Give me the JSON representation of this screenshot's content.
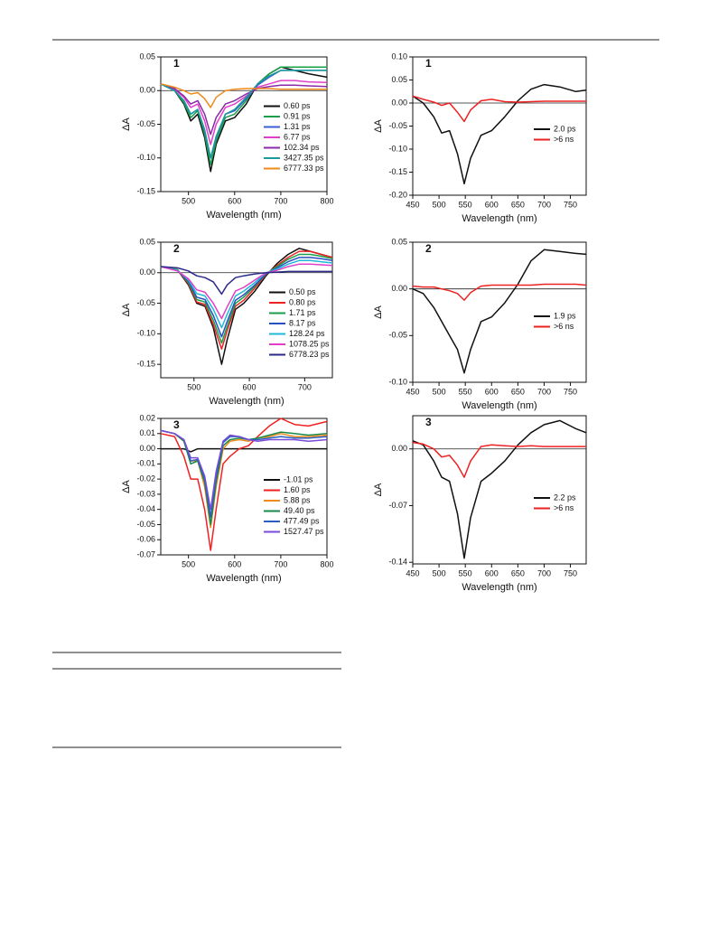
{
  "chart_data": [
    {
      "type": "line",
      "title": "1",
      "x_label": "Wavelength (nm)",
      "y_label": "ΔA",
      "legend": "lower right",
      "zero_line": true,
      "xlim": [
        440,
        800
      ],
      "xticks": [
        500,
        600,
        700,
        800
      ],
      "ylim": [
        -0.15,
        0.05
      ],
      "yticks": [
        -0.15,
        {
          "value": -0.1,
          "label": "-0.10"
        },
        -0.05,
        {
          "value": 0,
          "label": "0.00"
        },
        0.05
      ],
      "x": [
        440,
        470,
        490,
        505,
        520,
        535,
        548,
        560,
        580,
        600,
        625,
        650,
        675,
        700,
        730,
        760,
        800
      ],
      "series": [
        {
          "name": "0.60 ps",
          "color": "#111111",
          "values": [
            0.01,
            0.0,
            -0.02,
            -0.045,
            -0.035,
            -0.07,
            -0.12,
            -0.08,
            -0.045,
            -0.04,
            -0.02,
            0.01,
            0.025,
            0.035,
            0.03,
            0.025,
            0.02
          ]
        },
        {
          "name": "0.91 ps",
          "color": "#1a9e4a",
          "values": [
            0.01,
            0.0,
            -0.018,
            -0.04,
            -0.03,
            -0.065,
            -0.11,
            -0.075,
            -0.04,
            -0.035,
            -0.015,
            0.01,
            0.025,
            0.035,
            0.035,
            0.035,
            0.035
          ]
        },
        {
          "name": "1.31 ps",
          "color": "#3b5fd6",
          "values": [
            0.01,
            0.0,
            -0.015,
            -0.035,
            -0.028,
            -0.06,
            -0.1,
            -0.07,
            -0.035,
            -0.03,
            -0.012,
            0.008,
            0.02,
            0.03,
            0.03,
            0.03,
            0.03
          ]
        },
        {
          "name": "6.77 ps",
          "color": "#e040c8",
          "values": [
            0.01,
            0.002,
            -0.01,
            -0.025,
            -0.02,
            -0.045,
            -0.08,
            -0.05,
            -0.025,
            -0.02,
            -0.008,
            0.005,
            0.01,
            0.015,
            0.015,
            0.013,
            0.012
          ]
        },
        {
          "name": "102.34 ps",
          "color": "#8a2aa8",
          "values": [
            0.01,
            0.003,
            -0.008,
            -0.02,
            -0.015,
            -0.035,
            -0.065,
            -0.04,
            -0.02,
            -0.015,
            -0.005,
            0.003,
            0.006,
            0.008,
            0.008,
            0.007,
            0.006
          ]
        },
        {
          "name": "3427.35 ps",
          "color": "#1a9a9a",
          "values": [
            0.01,
            0.0,
            -0.015,
            -0.035,
            -0.028,
            -0.058,
            -0.1,
            -0.068,
            -0.035,
            -0.028,
            -0.01,
            0.01,
            0.022,
            0.03,
            0.03,
            0.03,
            0.03
          ]
        },
        {
          "name": "6777.33 ps",
          "color": "#f08a1c",
          "values": [
            0.01,
            0.005,
            0.0,
            -0.005,
            -0.003,
            -0.012,
            -0.025,
            -0.01,
            0.0,
            0.002,
            0.003,
            0.003,
            0.003,
            0.002,
            0.002,
            0.002,
            0.002
          ]
        }
      ]
    },
    {
      "type": "line",
      "title": "1",
      "x_label": "Wavelength (nm)",
      "y_label": "ΔA",
      "legend": "lower right",
      "zero_line": true,
      "xlim": [
        450,
        780
      ],
      "xticks": [
        450,
        500,
        550,
        600,
        650,
        700,
        750
      ],
      "ylim": [
        -0.2,
        0.1
      ],
      "yticks": [
        {
          "value": -0.2,
          "label": "-0.20"
        },
        -0.15,
        {
          "value": -0.1,
          "label": "-0.10"
        },
        -0.05,
        {
          "value": 0,
          "label": "0.00"
        },
        0.05,
        {
          "value": 0.1,
          "label": "0.10"
        }
      ],
      "x": [
        450,
        470,
        490,
        505,
        520,
        535,
        548,
        560,
        580,
        600,
        625,
        650,
        675,
        700,
        730,
        760,
        780
      ],
      "series": [
        {
          "name": "2.0 ps",
          "color": "#111111",
          "values": [
            0.015,
            0.0,
            -0.03,
            -0.065,
            -0.06,
            -0.11,
            -0.175,
            -0.12,
            -0.07,
            -0.06,
            -0.03,
            0.005,
            0.03,
            0.04,
            0.035,
            0.025,
            0.028
          ]
        },
        {
          "name": ">6 ns",
          "color": "#ee2222",
          "values": [
            0.015,
            0.008,
            0.002,
            -0.005,
            0.0,
            -0.02,
            -0.04,
            -0.015,
            0.005,
            0.008,
            0.003,
            0.002,
            0.003,
            0.004,
            0.004,
            0.004,
            0.004
          ]
        }
      ]
    },
    {
      "type": "line",
      "title": "2",
      "x_label": "Wavelength (nm)",
      "y_label": "ΔA",
      "legend": "lower right",
      "zero_line": true,
      "xlim": [
        440,
        750
      ],
      "xticks": [
        500,
        600,
        700
      ],
      "ylim": [
        -0.172,
        0.05
      ],
      "yticks": [
        -0.15,
        {
          "value": -0.1,
          "label": "-0.10"
        },
        -0.05,
        {
          "value": 0,
          "label": "0.00"
        },
        0.05
      ],
      "x": [
        440,
        470,
        490,
        505,
        520,
        535,
        550,
        560,
        575,
        590,
        610,
        630,
        650,
        670,
        690,
        710,
        730,
        750
      ],
      "series": [
        {
          "name": "0.50 ps",
          "color": "#111111",
          "values": [
            0.01,
            0.005,
            -0.02,
            -0.05,
            -0.055,
            -0.09,
            -0.15,
            -0.11,
            -0.06,
            -0.05,
            -0.03,
            -0.005,
            0.015,
            0.03,
            0.04,
            0.035,
            0.03,
            0.025
          ]
        },
        {
          "name": "0.80 ps",
          "color": "#ee2222",
          "values": [
            0.01,
            0.005,
            -0.018,
            -0.048,
            -0.052,
            -0.085,
            -0.125,
            -0.095,
            -0.055,
            -0.045,
            -0.025,
            -0.003,
            0.012,
            0.025,
            0.035,
            0.035,
            0.03,
            0.025
          ]
        },
        {
          "name": "1.71 ps",
          "color": "#1a9e4a",
          "values": [
            0.01,
            0.005,
            -0.016,
            -0.044,
            -0.048,
            -0.078,
            -0.115,
            -0.088,
            -0.05,
            -0.04,
            -0.022,
            -0.002,
            0.01,
            0.022,
            0.03,
            0.03,
            0.027,
            0.023
          ]
        },
        {
          "name": "8.17 ps",
          "color": "#2a4fc0",
          "values": [
            0.01,
            0.004,
            -0.014,
            -0.04,
            -0.044,
            -0.07,
            -0.105,
            -0.08,
            -0.045,
            -0.036,
            -0.02,
            -0.002,
            0.008,
            0.018,
            0.025,
            0.025,
            0.023,
            0.02
          ]
        },
        {
          "name": "128.24 ps",
          "color": "#20b8d8",
          "values": [
            0.01,
            0.004,
            -0.012,
            -0.034,
            -0.038,
            -0.06,
            -0.09,
            -0.068,
            -0.038,
            -0.03,
            -0.016,
            0.0,
            0.006,
            0.014,
            0.02,
            0.02,
            0.018,
            0.016
          ]
        },
        {
          "name": "1078.25 ps",
          "color": "#e040c8",
          "values": [
            0.01,
            0.003,
            -0.01,
            -0.028,
            -0.032,
            -0.05,
            -0.075,
            -0.056,
            -0.03,
            -0.024,
            -0.012,
            0.0,
            0.004,
            0.01,
            0.014,
            0.014,
            0.013,
            0.012
          ]
        },
        {
          "name": "6778.23 ps",
          "color": "#2a2a8a",
          "values": [
            0.01,
            0.008,
            0.003,
            -0.005,
            -0.008,
            -0.015,
            -0.035,
            -0.02,
            -0.008,
            -0.005,
            -0.002,
            0.0,
            0.001,
            0.002,
            0.002,
            0.002,
            0.002,
            0.002
          ]
        }
      ]
    },
    {
      "type": "line",
      "title": "2",
      "x_label": "Wavelength (nm)",
      "y_label": "ΔA",
      "legend": "lower right",
      "zero_line": true,
      "xlim": [
        450,
        780
      ],
      "xticks": [
        450,
        500,
        550,
        600,
        650,
        700,
        750
      ],
      "ylim": [
        -0.1,
        0.05
      ],
      "yticks": [
        {
          "value": -0.1,
          "label": "-0.10"
        },
        -0.05,
        {
          "value": 0,
          "label": "0.00"
        },
        0.05
      ],
      "x": [
        450,
        470,
        490,
        505,
        520,
        535,
        548,
        560,
        580,
        600,
        625,
        650,
        675,
        700,
        730,
        760,
        780
      ],
      "series": [
        {
          "name": "1.9 ps",
          "color": "#111111",
          "values": [
            0.0,
            -0.005,
            -0.02,
            -0.035,
            -0.05,
            -0.065,
            -0.09,
            -0.065,
            -0.035,
            -0.03,
            -0.015,
            0.005,
            0.03,
            0.042,
            0.04,
            0.038,
            0.037
          ]
        },
        {
          "name": ">6 ns",
          "color": "#ee2222",
          "values": [
            0.003,
            0.002,
            0.002,
            0.0,
            -0.002,
            -0.005,
            -0.012,
            -0.004,
            0.003,
            0.004,
            0.004,
            0.004,
            0.004,
            0.005,
            0.005,
            0.005,
            0.004
          ]
        }
      ]
    },
    {
      "type": "line",
      "title": "3",
      "x_label": "Wavelength (nm)",
      "y_label": "ΔA",
      "legend": "lower right",
      "zero_line": false,
      "xlim": [
        440,
        800
      ],
      "xticks": [
        500,
        600,
        700,
        800
      ],
      "ylim": [
        -0.07,
        0.02
      ],
      "yticks": [
        -0.07,
        -0.06,
        -0.05,
        -0.04,
        -0.03,
        -0.02,
        -0.01,
        {
          "value": 0,
          "label": "0.00"
        },
        0.01,
        0.02
      ],
      "x": [
        440,
        470,
        490,
        505,
        520,
        535,
        548,
        560,
        575,
        590,
        610,
        630,
        650,
        675,
        700,
        730,
        760,
        800
      ],
      "series": [
        {
          "name": "-1.01 ps",
          "color": "#111111",
          "values": [
            0.0,
            0.0,
            0.0,
            -0.002,
            0.0,
            0.0,
            0.0,
            0.0,
            0.0,
            0.0,
            0.0,
            0.0,
            0.0,
            0.0,
            0.0,
            0.0,
            0.0,
            0.0
          ]
        },
        {
          "name": "1.60 ps",
          "color": "#ee2222",
          "values": [
            0.01,
            0.008,
            -0.005,
            -0.02,
            -0.02,
            -0.04,
            -0.067,
            -0.04,
            -0.01,
            -0.005,
            0.0,
            0.002,
            0.008,
            0.015,
            0.02,
            0.016,
            0.015,
            0.018
          ]
        },
        {
          "name": "5.88 ps",
          "color": "#f08a1c",
          "values": [
            0.012,
            0.01,
            0.005,
            -0.008,
            -0.008,
            -0.025,
            -0.052,
            -0.025,
            0.0,
            0.005,
            0.006,
            0.005,
            0.007,
            0.008,
            0.01,
            0.008,
            0.008,
            0.009
          ]
        },
        {
          "name": "49.40 ps",
          "color": "#1a8a4a",
          "values": [
            0.012,
            0.01,
            0.005,
            -0.01,
            -0.008,
            -0.022,
            -0.05,
            -0.022,
            0.002,
            0.006,
            0.007,
            0.006,
            0.007,
            0.009,
            0.011,
            0.01,
            0.009,
            0.01
          ]
        },
        {
          "name": "477.49 ps",
          "color": "#2a5fc0",
          "values": [
            0.012,
            0.01,
            0.006,
            -0.008,
            -0.007,
            -0.02,
            -0.045,
            -0.018,
            0.004,
            0.008,
            0.008,
            0.006,
            0.006,
            0.007,
            0.008,
            0.007,
            0.007,
            0.008
          ]
        },
        {
          "name": "1527.47 ps",
          "color": "#7a4ad8",
          "values": [
            0.012,
            0.01,
            0.006,
            -0.006,
            -0.006,
            -0.018,
            -0.04,
            -0.015,
            0.005,
            0.009,
            0.008,
            0.006,
            0.005,
            0.006,
            0.006,
            0.006,
            0.005,
            0.006
          ]
        }
      ]
    },
    {
      "type": "line",
      "title": "3",
      "x_label": "Wavelength (nm)",
      "y_label": "ΔA",
      "legend": "lower right",
      "zero_line": true,
      "xlim": [
        450,
        780
      ],
      "xticks": [
        450,
        500,
        550,
        600,
        650,
        700,
        750
      ],
      "ylim": [
        -0.142,
        0.041
      ],
      "yticks": [
        -0.14,
        -0.07,
        {
          "value": 0,
          "label": "0.00"
        }
      ],
      "x": [
        450,
        470,
        490,
        505,
        520,
        535,
        548,
        560,
        580,
        600,
        625,
        650,
        675,
        700,
        730,
        760,
        780
      ],
      "series": [
        {
          "name": "2.2 ps",
          "color": "#111111",
          "values": [
            0.01,
            0.005,
            -0.015,
            -0.035,
            -0.04,
            -0.08,
            -0.135,
            -0.085,
            -0.04,
            -0.03,
            -0.015,
            0.005,
            0.02,
            0.03,
            0.035,
            0.025,
            0.02
          ]
        },
        {
          "name": ">6 ns",
          "color": "#ee2222",
          "values": [
            0.008,
            0.006,
            0.0,
            -0.01,
            -0.008,
            -0.02,
            -0.035,
            -0.015,
            0.003,
            0.005,
            0.004,
            0.003,
            0.004,
            0.003,
            0.003,
            0.003,
            0.003
          ]
        }
      ]
    }
  ]
}
